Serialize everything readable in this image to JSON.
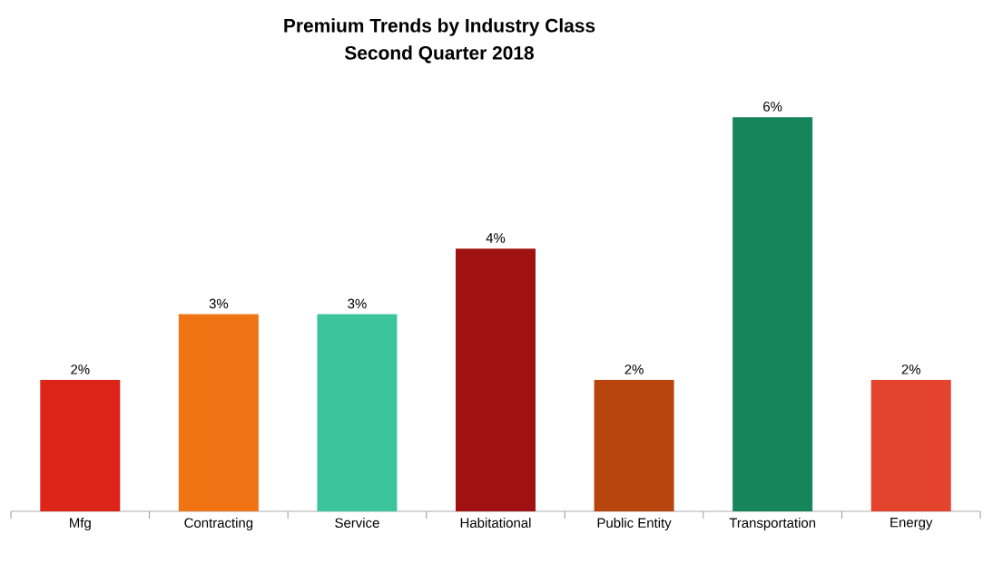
{
  "chart_data": {
    "type": "bar",
    "title": "Premium Trends by Industry Class",
    "subtitle": "Second Quarter 2018",
    "categories": [
      "Mfg",
      "Contracting",
      "Service",
      "Habitational",
      "Public Entity",
      "Transportation",
      "Energy"
    ],
    "values": [
      2,
      3,
      3,
      4,
      2,
      6,
      2
    ],
    "value_labels": [
      "2%",
      "3%",
      "3%",
      "4%",
      "2%",
      "6%",
      "2%"
    ],
    "colors": [
      "#dd2418",
      "#f07414",
      "#3cc49c",
      "#a01212",
      "#b8440e",
      "#17855c",
      "#e4442e"
    ]
  }
}
